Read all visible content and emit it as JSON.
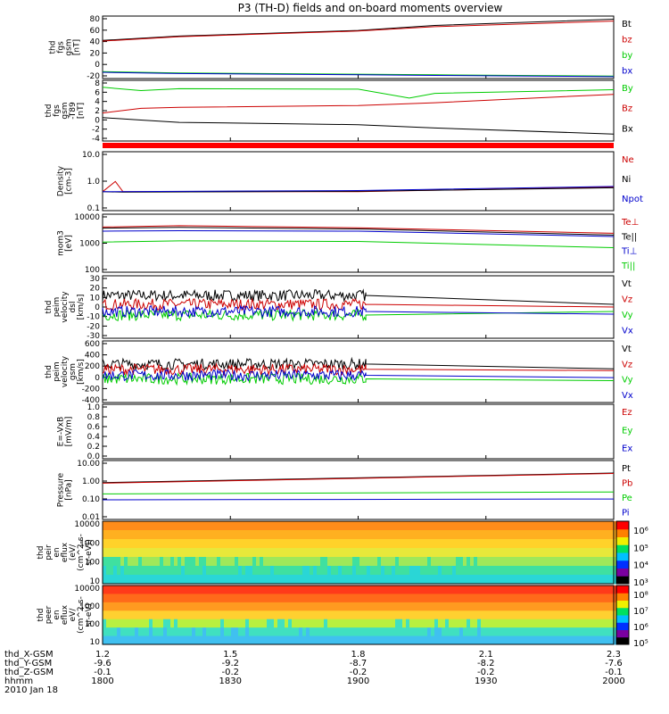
{
  "title": "P3 (TH-D) fields and on-board moments overview",
  "chart_data": [
    {
      "type": "line",
      "ylabel": [
        "thd",
        "fgs",
        "gsm",
        "[nT]"
      ],
      "yticks": [
        "80",
        "60",
        "40",
        "20",
        "0",
        "-20"
      ],
      "ylim": [
        -20,
        80
      ],
      "series": [
        {
          "name": "Bt",
          "color": "#000000",
          "points": [
            [
              1800,
              41
            ],
            [
              1830,
              48
            ],
            [
              1900,
              57
            ],
            [
              1930,
              65
            ],
            [
              2000,
              75
            ]
          ]
        },
        {
          "name": "bz",
          "color": "#cc0000",
          "points": [
            [
              1800,
              40
            ],
            [
              1830,
              47
            ],
            [
              1900,
              56
            ],
            [
              1930,
              63
            ],
            [
              2000,
              72
            ]
          ]
        },
        {
          "name": "by",
          "color": "#00cc00",
          "points": [
            [
              1800,
              -9
            ],
            [
              1830,
              -11
            ],
            [
              1900,
              -13
            ],
            [
              1930,
              -14
            ],
            [
              2000,
              -16
            ]
          ]
        },
        {
          "name": "bx",
          "color": "#0000cc",
          "points": [
            [
              1800,
              -10
            ],
            [
              1830,
              -12
            ],
            [
              1900,
              -14
            ],
            [
              1930,
              -15
            ],
            [
              2000,
              -17
            ]
          ]
        }
      ]
    },
    {
      "type": "line",
      "ylabel": [
        "thd",
        "fgs",
        "gsm",
        "-T89",
        "[nT]"
      ],
      "yticks": [
        "8",
        "6",
        "4",
        "2",
        "0",
        "-2",
        "-4"
      ],
      "ylim": [
        -5,
        8
      ],
      "series": [
        {
          "name": "By",
          "color": "#00cc00",
          "points": [
            [
              1800,
              6.5
            ],
            [
              1815,
              5.8
            ],
            [
              1830,
              6.2
            ],
            [
              1900,
              6.1
            ],
            [
              1920,
              4.2
            ],
            [
              1930,
              5.2
            ],
            [
              2000,
              6.0
            ]
          ]
        },
        {
          "name": "Bz",
          "color": "#cc0000",
          "points": [
            [
              1800,
              1.0
            ],
            [
              1815,
              2.0
            ],
            [
              1830,
              2.2
            ],
            [
              1900,
              2.6
            ],
            [
              1930,
              3.2
            ],
            [
              2000,
              5.0
            ]
          ]
        },
        {
          "name": "Bx",
          "color": "#000000",
          "points": [
            [
              1800,
              0.0
            ],
            [
              1815,
              -0.5
            ],
            [
              1830,
              -1.0
            ],
            [
              1900,
              -1.5
            ],
            [
              1930,
              -2.2
            ],
            [
              2000,
              -3.5
            ]
          ]
        }
      ]
    },
    {
      "type": "line",
      "ylabel": [
        "Density",
        "[cm-3]"
      ],
      "yticks": [
        "10.0",
        "1.0",
        "0.1"
      ],
      "scale": "log",
      "ylim": [
        0.1,
        15
      ],
      "series": [
        {
          "name": "Ne",
          "color": "#cc0000",
          "points": [
            [
              1800,
              0.5
            ],
            [
              1805,
              1.2
            ],
            [
              1808,
              0.5
            ],
            [
              1900,
              0.5
            ],
            [
              2000,
              0.75
            ]
          ]
        },
        {
          "name": "Ni",
          "color": "#000000",
          "points": [
            [
              1800,
              0.5
            ],
            [
              1808,
              0.48
            ],
            [
              1900,
              0.52
            ],
            [
              2000,
              0.7
            ]
          ]
        },
        {
          "name": "Npot",
          "color": "#0000cc",
          "points": [
            [
              1800,
              0.5
            ],
            [
              1900,
              0.55
            ],
            [
              2000,
              0.78
            ]
          ]
        }
      ]
    },
    {
      "type": "line",
      "ylabel": [
        "mom3",
        "[eV]"
      ],
      "yticks": [
        "10000",
        "1000",
        "100"
      ],
      "scale": "log",
      "ylim": [
        100,
        10000
      ],
      "series": [
        {
          "name": "Te⊥",
          "color": "#cc0000",
          "points": [
            [
              1800,
              3600
            ],
            [
              1830,
              4000
            ],
            [
              1900,
              3400
            ],
            [
              2000,
              2200
            ]
          ]
        },
        {
          "name": "Te||",
          "color": "#000000",
          "points": [
            [
              1800,
              3300
            ],
            [
              1830,
              3500
            ],
            [
              1900,
              3100
            ],
            [
              2000,
              1900
            ]
          ]
        },
        {
          "name": "Ti⊥",
          "color": "#0000cc",
          "points": [
            [
              1800,
              2600
            ],
            [
              1830,
              2700
            ],
            [
              1900,
              2600
            ],
            [
              2000,
              1700
            ]
          ]
        },
        {
          "name": "Ti||",
          "color": "#00cc00",
          "points": [
            [
              1800,
              1100
            ],
            [
              1830,
              1200
            ],
            [
              1900,
              1150
            ],
            [
              2000,
              700
            ]
          ]
        }
      ]
    },
    {
      "type": "line",
      "ylabel": [
        "thd",
        "peim",
        "velocity",
        "dsl",
        "[km/s]"
      ],
      "yticks": [
        "30",
        "20",
        "10",
        "0",
        "-10",
        "-20",
        "-30"
      ],
      "ylim": [
        -30,
        40
      ],
      "noisy": [
        1800,
        1903
      ],
      "series": [
        {
          "name": "Vt",
          "color": "#000000",
          "points": [
            [
              1800,
              18
            ],
            [
              1903,
              18
            ],
            [
              2000,
              8
            ]
          ]
        },
        {
          "name": "Vz",
          "color": "#cc0000",
          "points": [
            [
              1800,
              8
            ],
            [
              1903,
              8
            ],
            [
              2000,
              5
            ]
          ]
        },
        {
          "name": "Vy",
          "color": "#00cc00",
          "points": [
            [
              1800,
              -4
            ],
            [
              1903,
              -4
            ],
            [
              2000,
              0
            ]
          ]
        },
        {
          "name": "Vx",
          "color": "#0000cc",
          "points": [
            [
              1800,
              0
            ],
            [
              1903,
              0
            ],
            [
              2000,
              -3
            ]
          ]
        }
      ]
    },
    {
      "type": "line",
      "ylabel": [
        "thd",
        "peim",
        "velocity",
        "gsm",
        "[km/s]"
      ],
      "yticks": [
        "600",
        "400",
        "200",
        "0",
        "-200",
        "-400"
      ],
      "ylim": [
        -420,
        620
      ],
      "noisy": [
        1800,
        1903
      ],
      "series": [
        {
          "name": "Vt",
          "color": "#000000",
          "points": [
            [
              1800,
              230
            ],
            [
              1903,
              230
            ],
            [
              2000,
              150
            ]
          ]
        },
        {
          "name": "Vz",
          "color": "#cc0000",
          "points": [
            [
              1800,
              140
            ],
            [
              1903,
              140
            ],
            [
              2000,
              120
            ]
          ]
        },
        {
          "name": "Vy",
          "color": "#00cc00",
          "points": [
            [
              1800,
              -20
            ],
            [
              1903,
              -20
            ],
            [
              2000,
              -50
            ]
          ]
        },
        {
          "name": "Vx",
          "color": "#0000cc",
          "points": [
            [
              1800,
              40
            ],
            [
              1903,
              40
            ],
            [
              2000,
              0
            ]
          ]
        }
      ]
    },
    {
      "type": "line",
      "ylabel": [
        "E=-VxB",
        "[mV/m]"
      ],
      "yticks": [
        "1.0",
        "0.8",
        "0.6",
        "0.4",
        "0.2",
        "0.0"
      ],
      "ylim": [
        0,
        1
      ],
      "series": [
        {
          "name": "Ez",
          "color": "#cc0000",
          "points": []
        },
        {
          "name": "Ey",
          "color": "#00cc00",
          "points": []
        },
        {
          "name": "Ex",
          "color": "#0000cc",
          "points": []
        }
      ]
    },
    {
      "type": "line",
      "ylabel": [
        "Pressure",
        "[nPa]"
      ],
      "yticks": [
        "10.00",
        "1.00",
        "0.10",
        "0.01"
      ],
      "scale": "log",
      "ylim": [
        0.01,
        10
      ],
      "series": [
        {
          "name": "Pt",
          "color": "#000000",
          "points": [
            [
              1800,
              0.75
            ],
            [
              2000,
              2.3
            ]
          ]
        },
        {
          "name": "Pb",
          "color": "#cc0000",
          "points": [
            [
              1800,
              0.7
            ],
            [
              2000,
              2.2
            ]
          ]
        },
        {
          "name": "Pe",
          "color": "#00cc00",
          "points": [
            [
              1800,
              0.2
            ],
            [
              2000,
              0.25
            ]
          ]
        },
        {
          "name": "Pi",
          "color": "#0000cc",
          "points": [
            [
              1800,
              0.1
            ],
            [
              2000,
              0.11
            ]
          ]
        }
      ]
    },
    {
      "type": "heatmap",
      "ylabel": [
        "thd",
        "peir",
        "en",
        "eflux",
        "(eV/",
        "(cm^2-s-",
        "sr-eV))"
      ],
      "yticks": [
        "10000",
        "1000",
        "100",
        "10"
      ],
      "colorbar": {
        "ticks": [
          "10⁶",
          "10⁵",
          "10⁴",
          "10³"
        ]
      }
    },
    {
      "type": "heatmap",
      "ylabel": [
        "thd",
        "peer",
        "en",
        "eflux",
        "eV/",
        "(cm^2-s-",
        "sr-eV)"
      ],
      "yticks": [
        "10000",
        "1000",
        "100",
        "10"
      ],
      "colorbar": {
        "ticks": [
          "10⁸",
          "10⁷",
          "10⁶",
          "10⁵"
        ]
      }
    }
  ],
  "xaxis": {
    "rows": [
      {
        "label": "thd_X-GSM",
        "values": [
          "1.2",
          "1.5",
          "1.8",
          "2.1",
          "2.3"
        ]
      },
      {
        "label": "thd_Y-GSM",
        "values": [
          "-9.6",
          "-9.2",
          "-8.7",
          "-8.2",
          "-7.6"
        ]
      },
      {
        "label": "thd_Z-GSM",
        "values": [
          "-0.1",
          "-0.2",
          "-0.2",
          "-0.2",
          "-0.1"
        ]
      },
      {
        "label": "hhmm",
        "values": [
          "1800",
          "1830",
          "1900",
          "1930",
          "2000"
        ]
      }
    ],
    "date": "2010 Jan 18"
  }
}
